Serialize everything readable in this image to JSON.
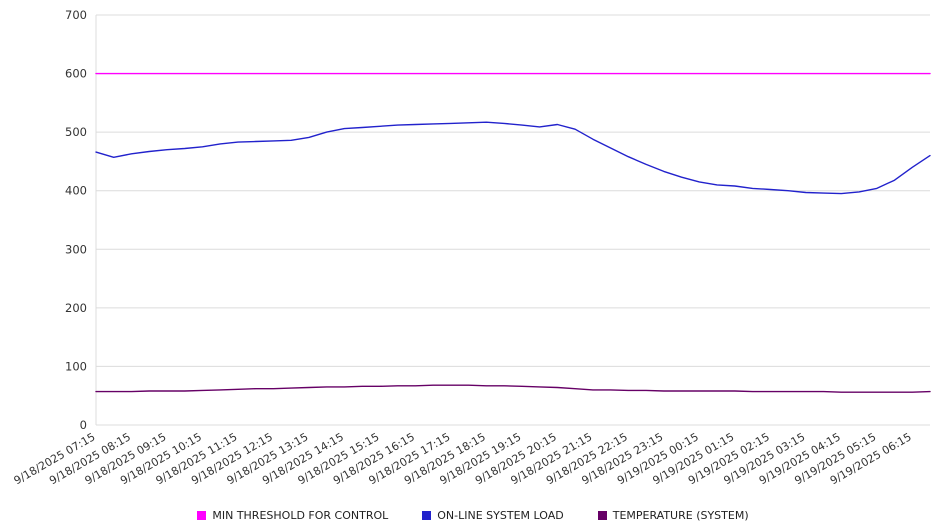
{
  "page": {
    "background": "#ffffff",
    "grid_color": "#dcdcdc",
    "text_color": "#333333"
  },
  "chart_data": {
    "type": "line",
    "title": "",
    "xlabel": "",
    "ylabel": "",
    "ylim": [
      0,
      700
    ],
    "yticks": [
      0,
      100,
      200,
      300,
      400,
      500,
      600,
      700
    ],
    "grid": true,
    "legend_position": "bottom",
    "categories": [
      "9/18/2025 07:15",
      "9/18/2025 08:15",
      "9/18/2025 09:15",
      "9/18/2025 10:15",
      "9/18/2025 11:15",
      "9/18/2025 12:15",
      "9/18/2025 13:15",
      "9/18/2025 14:15",
      "9/18/2025 15:15",
      "9/18/2025 16:15",
      "9/18/2025 17:15",
      "9/18/2025 18:15",
      "9/18/2025 19:15",
      "9/18/2025 20:15",
      "9/18/2025 21:15",
      "9/18/2025 22:15",
      "9/18/2025 23:15",
      "9/19/2025 00:15",
      "9/19/2025 01:15",
      "9/19/2025 02:15",
      "9/19/2025 03:15",
      "9/19/2025 04:15",
      "9/19/2025 05:15",
      "9/19/2025 06:15"
    ],
    "points_per_tick": 2,
    "series": [
      {
        "name": "MIN THRESHOLD FOR CONTROL",
        "color": "#ff00ff",
        "values": [
          600,
          600,
          600,
          600,
          600,
          600,
          600,
          600,
          600,
          600,
          600,
          600,
          600,
          600,
          600,
          600,
          600,
          600,
          600,
          600,
          600,
          600,
          600,
          600,
          600,
          600,
          600,
          600,
          600,
          600,
          600,
          600,
          600,
          600,
          600,
          600,
          600,
          600,
          600,
          600,
          600,
          600,
          600,
          600,
          600,
          600,
          600,
          600
        ]
      },
      {
        "name": "ON-LINE SYSTEM LOAD",
        "color": "#2222cc",
        "values": [
          466,
          457,
          463,
          467,
          470,
          472,
          475,
          480,
          483,
          484,
          485,
          486,
          491,
          500,
          506,
          508,
          510,
          512,
          513,
          514,
          515,
          516,
          517,
          515,
          512,
          509,
          513,
          505,
          488,
          473,
          458,
          445,
          433,
          423,
          415,
          410,
          408,
          404,
          402,
          400,
          397,
          396,
          395,
          398,
          404,
          418,
          440,
          460
        ]
      },
      {
        "name": "TEMPERATURE (SYSTEM)",
        "color": "#660066",
        "values": [
          57,
          57,
          57,
          58,
          58,
          58,
          59,
          60,
          61,
          62,
          62,
          63,
          64,
          65,
          65,
          66,
          66,
          67,
          67,
          68,
          68,
          68,
          67,
          67,
          66,
          65,
          64,
          62,
          60,
          60,
          59,
          59,
          58,
          58,
          58,
          58,
          58,
          57,
          57,
          57,
          57,
          57,
          56,
          56,
          56,
          56,
          56,
          57
        ]
      }
    ]
  }
}
